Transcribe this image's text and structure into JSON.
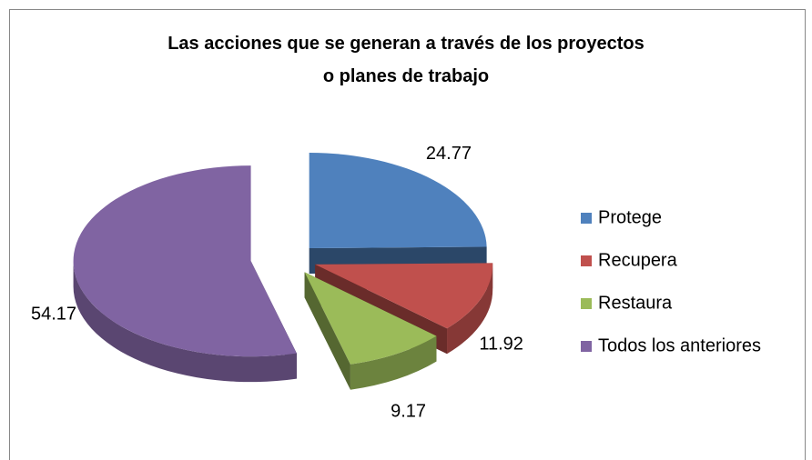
{
  "chart_data": {
    "type": "pie3d",
    "title": "Las acciones que se generan a través de los proyectos o planes de trabajo",
    "categories": [
      "Protege",
      "Recupera",
      "Restaura",
      "Todos los anteriores"
    ],
    "values": [
      24.77,
      11.92,
      9.17,
      54.17
    ],
    "colors": [
      "#4f81bd",
      "#c0504d",
      "#9bbb59",
      "#8064a2"
    ],
    "legend": "right"
  }
}
